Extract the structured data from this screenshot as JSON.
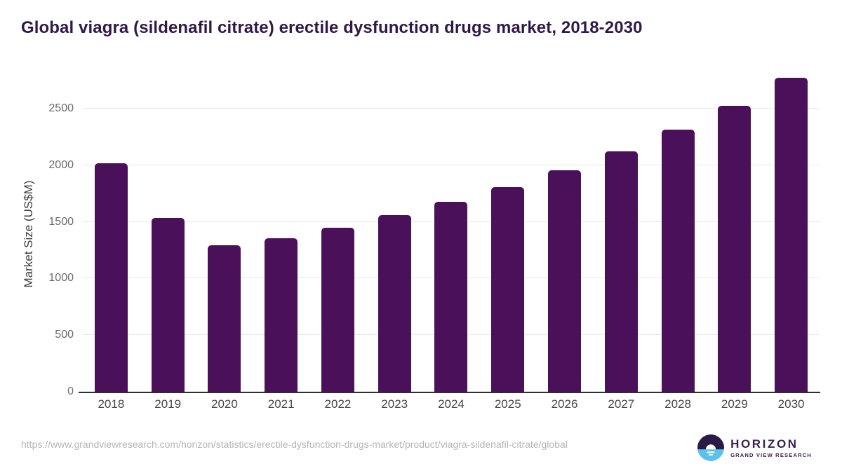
{
  "title": "Global viagra (sildenafil citrate) erectile dysfunction drugs market, 2018-2030",
  "chart_data": {
    "type": "bar",
    "title": "Global viagra (sildenafil citrate) erectile dysfunction drugs market, 2018-2030",
    "categories": [
      "2018",
      "2019",
      "2020",
      "2021",
      "2022",
      "2023",
      "2024",
      "2025",
      "2026",
      "2027",
      "2028",
      "2029",
      "2030"
    ],
    "values": [
      2015,
      1535,
      1295,
      1355,
      1450,
      1560,
      1680,
      1810,
      1955,
      2125,
      2315,
      2525,
      2775
    ],
    "xlabel": "",
    "ylabel": "Market Size (US$M)",
    "ylim": [
      0,
      2800
    ],
    "yticks": [
      0,
      500,
      1000,
      1500,
      2000,
      2500
    ],
    "grid": "horizontal gridlines at y ticks",
    "legend": "none",
    "bar_color": "#4a1059"
  },
  "footer": {
    "source_url": "https://www.grandviewresearch.com/horizon/statistics/erectile-dysfunction-drugs-market/product/viagra-sildenafil-citrate/global",
    "logo": {
      "name": "HORIZON",
      "subtitle": "GRAND VIEW RESEARCH"
    }
  },
  "colors": {
    "background": "#ffffff",
    "bar": "#4a1059",
    "title": "#30194a",
    "gridline": "#e8e8e8",
    "axis_line": "#2e2e2e",
    "y_tick_label": "#6b6b6b",
    "x_tick_label": "#474747",
    "axis_title": "#3d3d3d",
    "url_text": "#b5b5b5",
    "logo_dark": "#2b1a45",
    "logo_blue": "#5bc2f0",
    "logo_text": "#3b2154"
  }
}
